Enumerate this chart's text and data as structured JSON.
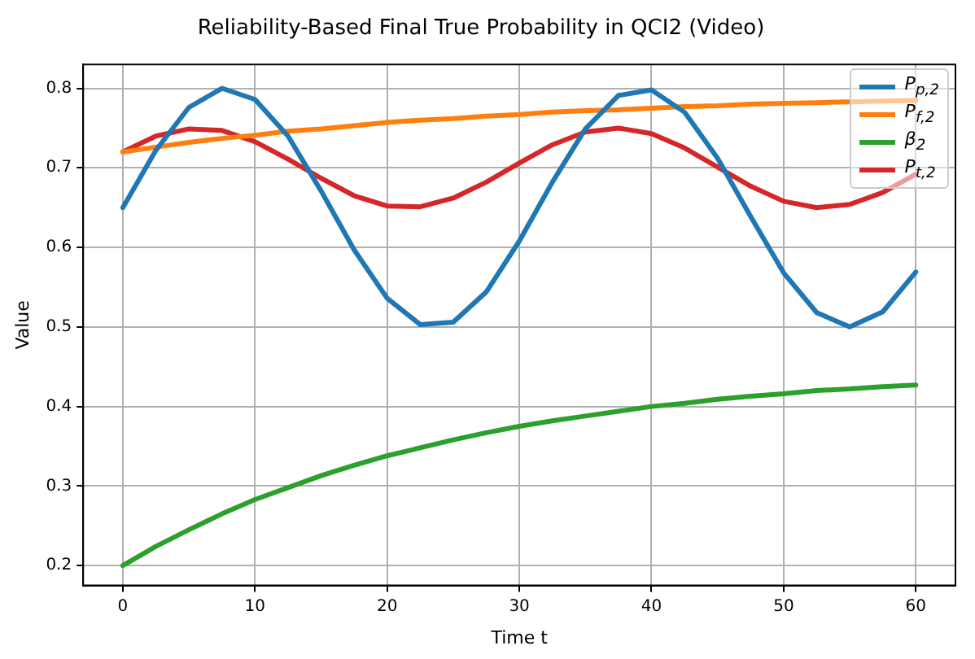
{
  "chart_data": {
    "type": "line",
    "title": "Reliability-Based Final True Probability in QCI2 (Video)",
    "xlabel": "Time t",
    "ylabel": "Value",
    "x": [
      0,
      2.5,
      5,
      7.5,
      10,
      12.5,
      15,
      17.5,
      20,
      22.5,
      25,
      27.5,
      30,
      32.5,
      35,
      37.5,
      40,
      42.5,
      45,
      47.5,
      50,
      52.5,
      55,
      57.5,
      60
    ],
    "series": [
      {
        "name": "P$_{p,2}$",
        "color": "#1f77b4",
        "values": [
          0.65,
          0.722,
          0.776,
          0.8,
          0.786,
          0.74,
          0.671,
          0.597,
          0.536,
          0.503,
          0.506,
          0.544,
          0.608,
          0.682,
          0.749,
          0.791,
          0.798,
          0.77,
          0.712,
          0.639,
          0.568,
          0.518,
          0.5,
          0.519,
          0.569
        ]
      },
      {
        "name": "P$_{f,2}$",
        "color": "#ff7f0e",
        "values": [
          0.72,
          0.726,
          0.732,
          0.737,
          0.741,
          0.746,
          0.749,
          0.753,
          0.757,
          0.76,
          0.762,
          0.765,
          0.767,
          0.77,
          0.772,
          0.773,
          0.775,
          0.777,
          0.778,
          0.78,
          0.781,
          0.782,
          0.783,
          0.784,
          0.785
        ]
      },
      {
        "name": "β$_{2}$",
        "color": "#2ca02c",
        "values": [
          0.2,
          0.224,
          0.245,
          0.265,
          0.283,
          0.298,
          0.313,
          0.326,
          0.338,
          0.348,
          0.358,
          0.367,
          0.375,
          0.382,
          0.388,
          0.394,
          0.4,
          0.404,
          0.409,
          0.413,
          0.416,
          0.42,
          0.422,
          0.425,
          0.427
        ]
      },
      {
        "name": "P$_{t,2}$",
        "color": "#d62728",
        "values": [
          0.72,
          0.74,
          0.749,
          0.747,
          0.733,
          0.711,
          0.687,
          0.665,
          0.652,
          0.651,
          0.662,
          0.682,
          0.706,
          0.729,
          0.745,
          0.75,
          0.743,
          0.725,
          0.701,
          0.677,
          0.658,
          0.65,
          0.654,
          0.669,
          0.692
        ]
      }
    ],
    "xlim": [
      -3,
      63
    ],
    "xticks": [
      0,
      10,
      20,
      30,
      40,
      50,
      60
    ],
    "ylim": [
      0.175,
      0.83
    ],
    "yticks": [
      0.2,
      0.3,
      0.4,
      0.5,
      0.6,
      0.7,
      0.8
    ],
    "grid": true,
    "legend": "top right",
    "marker": "none",
    "line_style": "solid"
  }
}
